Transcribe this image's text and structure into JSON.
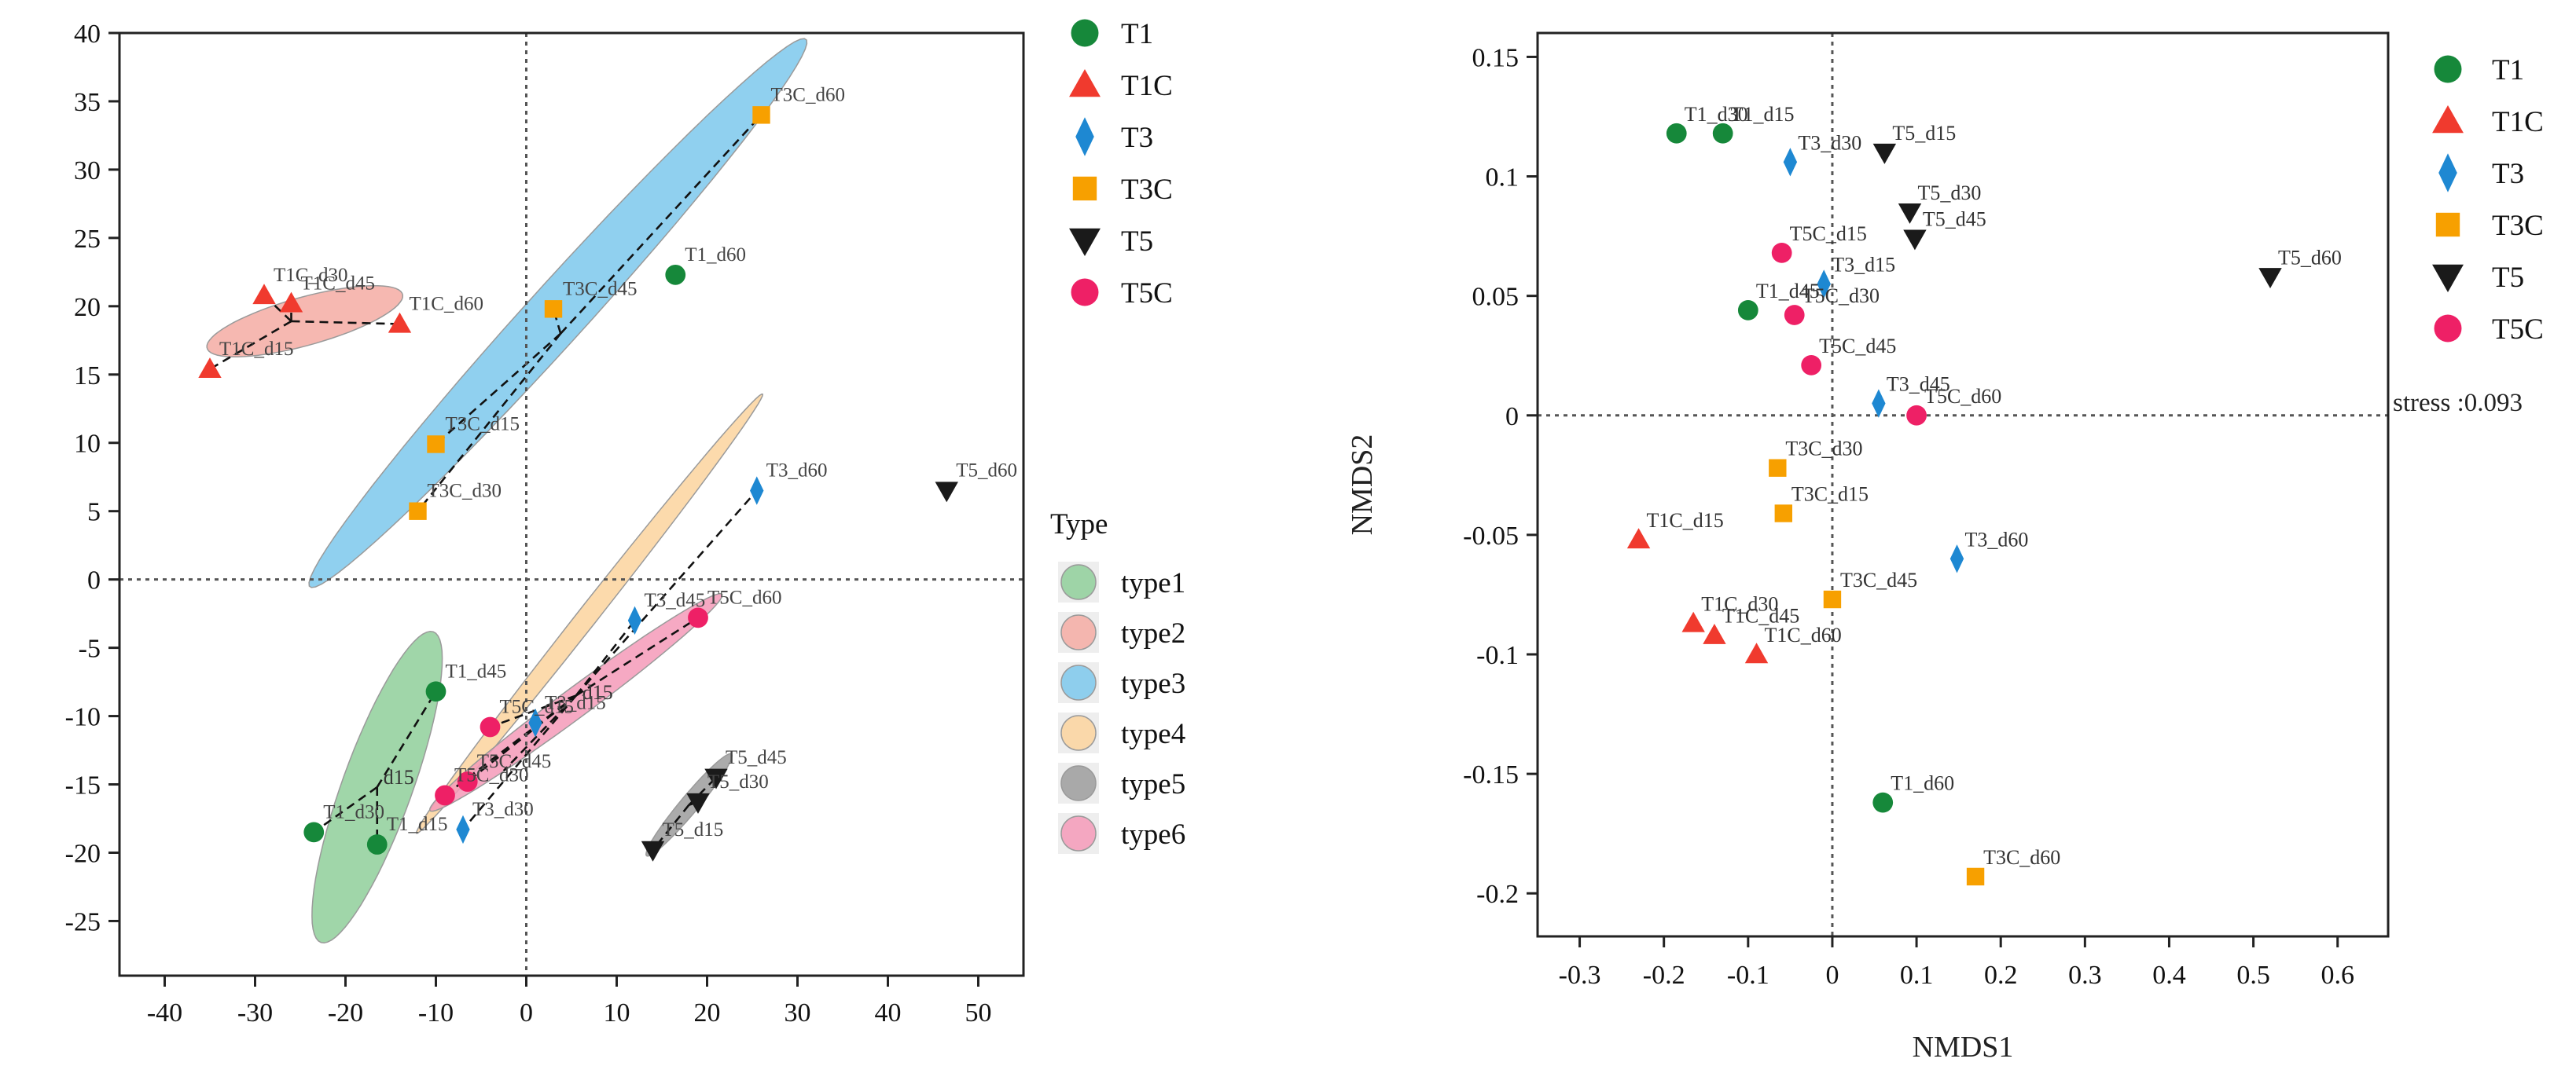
{
  "colors": {
    "T1": "#16883a",
    "T1C": "#f03a2e",
    "T3": "#1e88d2",
    "T3C": "#f7a000",
    "T5": "#1a1a1a",
    "T5C": "#ee2066",
    "type1": "#8fcf9a",
    "type2": "#f4aba3",
    "type3": "#7cc8ec",
    "type4": "#fbd49d",
    "type5": "#9c9c9c",
    "type6": "#f49ab8"
  },
  "chart_data": [
    {
      "type": "scatter",
      "title": "",
      "xlabel": "",
      "ylabel": "",
      "xlim": [
        -45,
        55
      ],
      "ylim": [
        -29,
        40
      ],
      "xticks": [
        "-40",
        "-30",
        "-20",
        "-10",
        "0",
        "10",
        "20",
        "30",
        "40",
        "50"
      ],
      "yticks": [
        "40",
        "35",
        "30",
        "25",
        "20",
        "15",
        "10",
        "5",
        "0",
        "-5",
        "-10",
        "-15",
        "-20",
        "-25"
      ],
      "reference_lines": {
        "x": 0,
        "y": 0
      },
      "legend": {
        "groups": [
          "T1",
          "T1C",
          "T3",
          "T3C",
          "T5",
          "T5C"
        ],
        "type_title": "Type",
        "types": [
          "type1",
          "type2",
          "type3",
          "type4",
          "type5",
          "type6"
        ]
      },
      "ellipses": [
        {
          "type": "type1",
          "cx": -16.5,
          "cy": -15.2,
          "rx": 13,
          "ry": 3.6,
          "angle_deg": 60,
          "center_label": "d15"
        },
        {
          "type": "type2",
          "cx": -24.5,
          "cy": 18.9,
          "rx": 11,
          "ry": 1.8,
          "angle_deg": 10
        },
        {
          "type": "type3",
          "cx": 3.5,
          "cy": 19.5,
          "rx": 34,
          "ry": 2.6,
          "angle_deg": 36
        },
        {
          "type": "type4",
          "cx": 7,
          "cy": -2.5,
          "rx": 25,
          "ry": 0.9,
          "angle_deg": 40
        },
        {
          "type": "type5",
          "cx": 18,
          "cy": -16.5,
          "rx": 6,
          "ry": 0.8,
          "angle_deg": 38
        },
        {
          "type": "type6",
          "cx": 5.5,
          "cy": -9,
          "rx": 18,
          "ry": 1.2,
          "angle_deg": 26,
          "center_label": "d15"
        }
      ],
      "spiders": [
        {
          "center": [
            -16.5,
            -15.2
          ],
          "points": [
            [
              -10,
              -8.2
            ],
            [
              -23.5,
              -18.5
            ],
            [
              -16.5,
              -19.4
            ]
          ]
        },
        {
          "center": [
            -26,
            18.9
          ],
          "points": [
            [
              -29,
              20.8
            ],
            [
              -26,
              20.2
            ],
            [
              -14,
              18.7
            ],
            [
              -35,
              15.4
            ]
          ]
        },
        {
          "center": [
            3.8,
            18
          ],
          "points": [
            [
              26,
              34
            ],
            [
              3,
              19.8
            ],
            [
              -10,
              9.9
            ],
            [
              -12,
              5
            ]
          ]
        },
        {
          "center": [
            5.5,
            -8.5
          ],
          "points": [
            [
              25.5,
              6.5
            ],
            [
              12,
              -3
            ],
            [
              -2.5,
              -14
            ],
            [
              -7,
              -18.3
            ]
          ]
        },
        {
          "center": [
            18,
            -16.5
          ],
          "points": [
            [
              21,
              -14.5
            ],
            [
              19,
              -16.3
            ],
            [
              14,
              -19.8
            ]
          ]
        },
        {
          "center": [
            5.5,
            -8.5
          ],
          "points": [
            [
              19,
              -2.8
            ],
            [
              -4,
              -10.8
            ],
            [
              -6.5,
              -14.8
            ],
            [
              -9,
              -15.8
            ]
          ]
        }
      ],
      "series": [
        {
          "name": "T1",
          "marker": "circle",
          "points": [
            {
              "label": "T1_d45",
              "x": -10,
              "y": -8.2
            },
            {
              "label": "T1_d30",
              "x": -23.5,
              "y": -18.5
            },
            {
              "label": "T1_d15",
              "x": -16.5,
              "y": -19.4
            },
            {
              "label": "T1_d60",
              "x": 16.5,
              "y": 22.3
            }
          ]
        },
        {
          "name": "T1C",
          "marker": "triangle-up",
          "points": [
            {
              "label": "T1C_d30",
              "x": -29,
              "y": 20.8
            },
            {
              "label": "T1C_d45",
              "x": -26,
              "y": 20.2
            },
            {
              "label": "T1C_d60",
              "x": -14,
              "y": 18.7
            },
            {
              "label": "T1C_d15",
              "x": -35,
              "y": 15.4
            }
          ]
        },
        {
          "name": "T3",
          "marker": "diamond",
          "points": [
            {
              "label": "T3_d60",
              "x": 25.5,
              "y": 6.5
            },
            {
              "label": "T3_d45",
              "x": 12,
              "y": -3
            },
            {
              "label": "T3_d15",
              "x": 1,
              "y": -10.5
            },
            {
              "label": "T3_d30",
              "x": -7,
              "y": -18.3
            }
          ]
        },
        {
          "name": "T3C",
          "marker": "square",
          "points": [
            {
              "label": "T3C_d60",
              "x": 26,
              "y": 34
            },
            {
              "label": "T3C_d45",
              "x": 3,
              "y": 19.8
            },
            {
              "label": "T3C_d15",
              "x": -10,
              "y": 9.9
            },
            {
              "label": "T3C_d30",
              "x": -12,
              "y": 5
            }
          ]
        },
        {
          "name": "T5",
          "marker": "triangle-down",
          "points": [
            {
              "label": "T5_d60",
              "x": 46.5,
              "y": 6.5
            },
            {
              "label": "T5_d45",
              "x": 21,
              "y": -14.5
            },
            {
              "label": "T5_d30",
              "x": 19,
              "y": -16.3
            },
            {
              "label": "T5_d15",
              "x": 14,
              "y": -19.8
            }
          ]
        },
        {
          "name": "T5C",
          "marker": "circle",
          "points": [
            {
              "label": "T5C_d60",
              "x": 19,
              "y": -2.8
            },
            {
              "label": "T5C_d15",
              "x": -4,
              "y": -10.8
            },
            {
              "label": "T5C_d45",
              "x": -6.5,
              "y": -14.8
            },
            {
              "label": "T5C_d30",
              "x": -9,
              "y": -15.8
            }
          ]
        }
      ]
    },
    {
      "type": "scatter",
      "title": "",
      "xlabel": "NMDS1",
      "ylabel": "NMDS2",
      "xlim": [
        -0.35,
        0.66
      ],
      "ylim": [
        -0.218,
        0.16
      ],
      "xticks": [
        "-0.3",
        "-0.2",
        "-0.1",
        "0",
        "0.1",
        "0.2",
        "0.3",
        "0.4",
        "0.5",
        "0.6"
      ],
      "yticks": [
        "0.15",
        "0.1",
        "0.05",
        "0",
        "-0.05",
        "-0.1",
        "-0.15",
        "-0.2"
      ],
      "reference_lines": {
        "x": 0,
        "y": 0
      },
      "stress_label": "stress :0.093",
      "legend": {
        "groups": [
          "T1",
          "T1C",
          "T3",
          "T3C",
          "T5",
          "T5C"
        ]
      },
      "series": [
        {
          "name": "T1",
          "marker": "circle",
          "points": [
            {
              "label": "T1_d30",
              "x": -0.185,
              "y": 0.118
            },
            {
              "label": "T1_d15",
              "x": -0.13,
              "y": 0.118
            },
            {
              "label": "T1_d45",
              "x": -0.1,
              "y": 0.044
            },
            {
              "label": "T1_d60",
              "x": 0.06,
              "y": -0.162
            }
          ]
        },
        {
          "name": "T1C",
          "marker": "triangle-up",
          "points": [
            {
              "label": "T1C_d15",
              "x": -0.23,
              "y": -0.052
            },
            {
              "label": "T1C_d30",
              "x": -0.165,
              "y": -0.087
            },
            {
              "label": "T1C_d45",
              "x": -0.14,
              "y": -0.092
            },
            {
              "label": "T1C_d60",
              "x": -0.09,
              "y": -0.1
            }
          ]
        },
        {
          "name": "T3",
          "marker": "diamond",
          "points": [
            {
              "label": "T3_d30",
              "x": -0.05,
              "y": 0.106
            },
            {
              "label": "T3_d15",
              "x": -0.01,
              "y": 0.055
            },
            {
              "label": "T3_d45",
              "x": 0.055,
              "y": 0.005
            },
            {
              "label": "T3_d60",
              "x": 0.148,
              "y": -0.06
            }
          ]
        },
        {
          "name": "T3C",
          "marker": "square",
          "points": [
            {
              "label": "T3C_d30",
              "x": -0.065,
              "y": -0.022
            },
            {
              "label": "T3C_d15",
              "x": -0.058,
              "y": -0.041
            },
            {
              "label": "T3C_d45",
              "x": 0,
              "y": -0.077
            },
            {
              "label": "T3C_d60",
              "x": 0.17,
              "y": -0.193
            }
          ]
        },
        {
          "name": "T5",
          "marker": "triangle-down",
          "points": [
            {
              "label": "T5_d15",
              "x": 0.062,
              "y": 0.11
            },
            {
              "label": "T5_d30",
              "x": 0.092,
              "y": 0.085
            },
            {
              "label": "T5_d45",
              "x": 0.098,
              "y": 0.074
            },
            {
              "label": "T5_d60",
              "x": 0.52,
              "y": 0.058
            }
          ]
        },
        {
          "name": "T5C",
          "marker": "circle",
          "points": [
            {
              "label": "T5C_d15",
              "x": -0.06,
              "y": 0.068
            },
            {
              "label": "T5C_d30",
              "x": -0.045,
              "y": 0.042
            },
            {
              "label": "T5C_d45",
              "x": -0.025,
              "y": 0.021
            },
            {
              "label": "T5C_d60",
              "x": 0.1,
              "y": 0
            }
          ]
        }
      ]
    }
  ]
}
